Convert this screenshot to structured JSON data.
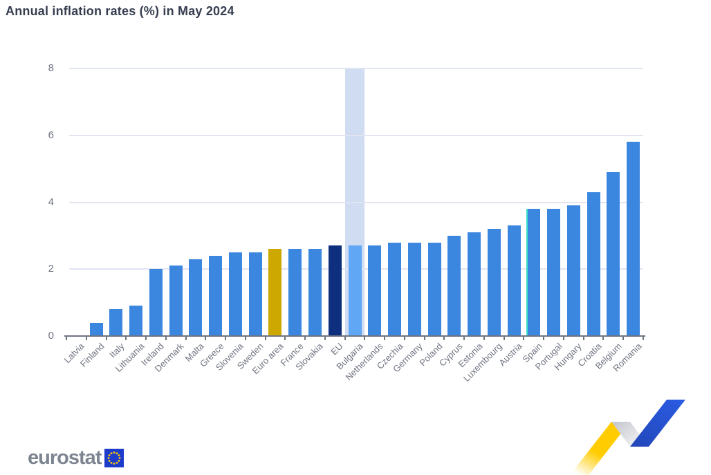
{
  "title": "Annual inflation rates (%) in May 2024",
  "chart_data": {
    "type": "bar",
    "title": "Annual inflation rates (%) in May 2024",
    "unit": "%",
    "categories": [
      "Latvia",
      "Finland",
      "Italy",
      "Lithuania",
      "Ireland",
      "Denmark",
      "Malta",
      "Greece",
      "Slovenia",
      "Sweden",
      "Euro area",
      "France",
      "Slovakia",
      "EU",
      "Bulgaria",
      "Netherlands",
      "Czechia",
      "Germany",
      "Poland",
      "Cyprus",
      "Estonia",
      "Luxembourg",
      "Austria",
      "Spain",
      "Portugal",
      "Hungary",
      "Croatia",
      "Belgium",
      "Romania"
    ],
    "values": [
      0.0,
      0.4,
      0.8,
      0.9,
      2.0,
      2.1,
      2.3,
      2.4,
      2.5,
      2.5,
      2.6,
      2.6,
      2.6,
      2.7,
      2.7,
      2.7,
      2.8,
      2.8,
      2.8,
      3.0,
      3.1,
      3.2,
      3.3,
      3.8,
      3.8,
      3.9,
      4.3,
      4.9,
      5.8
    ],
    "ylim": [
      0,
      8
    ],
    "yticks": [
      0,
      2,
      4,
      6,
      8
    ],
    "grid": true,
    "legend": false,
    "bar_color": "#3b87e0",
    "special_bars": {
      "Euro area": "#cca800",
      "EU": "#0e2e7e",
      "Bulgaria": "#60a7f6"
    },
    "highlighted_category": "Bulgaria",
    "highlight_band_color": "#d0dcf2",
    "cursor_line": {
      "category": "Spain",
      "edge": "left",
      "color": "#38ddc9"
    }
  },
  "branding": {
    "logo_text": "eurostat"
  },
  "icons": {
    "eu_flag": "eu-flag-icon",
    "ribbon": "eurostat-ribbon-icon"
  },
  "colors": {
    "background": "#ffffff",
    "title": "#353d4f",
    "grid": "#e1e5f2",
    "axis": "#6e7480",
    "tick_label": "#6f7480",
    "logo_text": "#7d8591",
    "eu_flag_blue": "#1e3ccc",
    "eu_flag_stars": "#ffcc00",
    "ribbon_yellow": "#ffcc00",
    "ribbon_gray": "#e2e4e8",
    "ribbon_blue": "#2353cc"
  }
}
